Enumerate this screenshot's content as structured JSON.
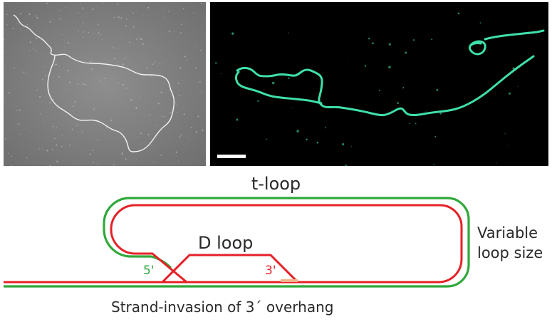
{
  "title": "t-loop",
  "d_loop_label": "D loop",
  "variable_loop_label": [
    "Variable",
    "loop size"
  ],
  "caption": "Strand-invasion of 3´ overhang",
  "end_labels": {
    "five_prime": "5'",
    "three_prime": "3'"
  },
  "panels": {
    "left": "electron-micrograph",
    "right": "fluorescence-image",
    "scale_bar": true
  },
  "colors": {
    "strand_green": "#2fa83a",
    "strand_red": "#e52127",
    "overhang": "#f2b08a",
    "fluor": "#3fe0a8",
    "em_background": "#8a8a8a",
    "fluor_background": "#000000"
  }
}
